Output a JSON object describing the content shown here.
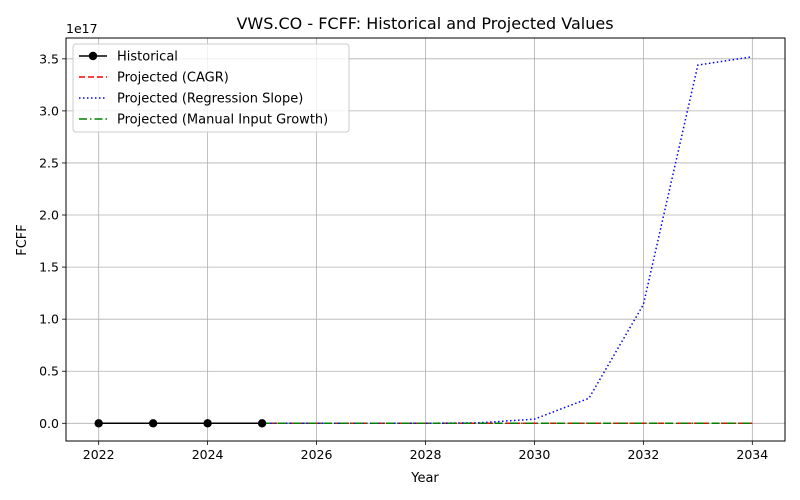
{
  "chart_data": {
    "type": "line",
    "title": "VWS.CO - FCFF: Historical and Projected Values",
    "xlabel": "Year",
    "ylabel": "FCFF",
    "offset_label": "1e17",
    "xlim": [
      2021.4,
      2034.6
    ],
    "ylim": [
      -0.17,
      3.7
    ],
    "y_unit_multiplier": 1e+17,
    "x_ticks": [
      2022,
      2024,
      2026,
      2028,
      2030,
      2032,
      2034
    ],
    "x_tick_labels": [
      "2022",
      "2024",
      "2026",
      "2028",
      "2030",
      "2032",
      "2034"
    ],
    "y_ticks": [
      0,
      0.5,
      1.0,
      1.5,
      2.0,
      2.5,
      3.0,
      3.5
    ],
    "y_tick_labels": [
      "0.0",
      "0.5",
      "1.0",
      "1.5",
      "2.0",
      "2.5",
      "3.0",
      "3.5"
    ],
    "grid": true,
    "legend_position": "top-left",
    "series": [
      {
        "name": "Historical",
        "color": "#000000",
        "style": "solid-markers",
        "x": [
          2022,
          2023,
          2024,
          2025
        ],
        "y": [
          0,
          0,
          0,
          0
        ]
      },
      {
        "name": "Projected (CAGR)",
        "color": "#ff0000",
        "style": "dashed",
        "x": [
          2025,
          2026,
          2027,
          2028,
          2029,
          2030,
          2031,
          2032,
          2033,
          2034
        ],
        "y": [
          0,
          0,
          0,
          0,
          0,
          0,
          0,
          0,
          0,
          0
        ]
      },
      {
        "name": "Projected (Regression Slope)",
        "color": "#0000ff",
        "style": "dotted",
        "x": [
          2025,
          2026,
          2027,
          2028,
          2029,
          2030,
          2031,
          2032,
          2033,
          2034
        ],
        "y": [
          0,
          0,
          0,
          0,
          0.005,
          0.04,
          0.24,
          1.14,
          3.44,
          3.52
        ]
      },
      {
        "name": "Projected (Manual Input Growth)",
        "color": "#008000",
        "style": "dashdot",
        "x": [
          2025,
          2026,
          2027,
          2028,
          2029,
          2030,
          2031,
          2032,
          2033,
          2034
        ],
        "y": [
          0,
          0,
          0,
          0,
          0,
          0,
          0,
          0,
          0,
          0
        ]
      }
    ]
  }
}
